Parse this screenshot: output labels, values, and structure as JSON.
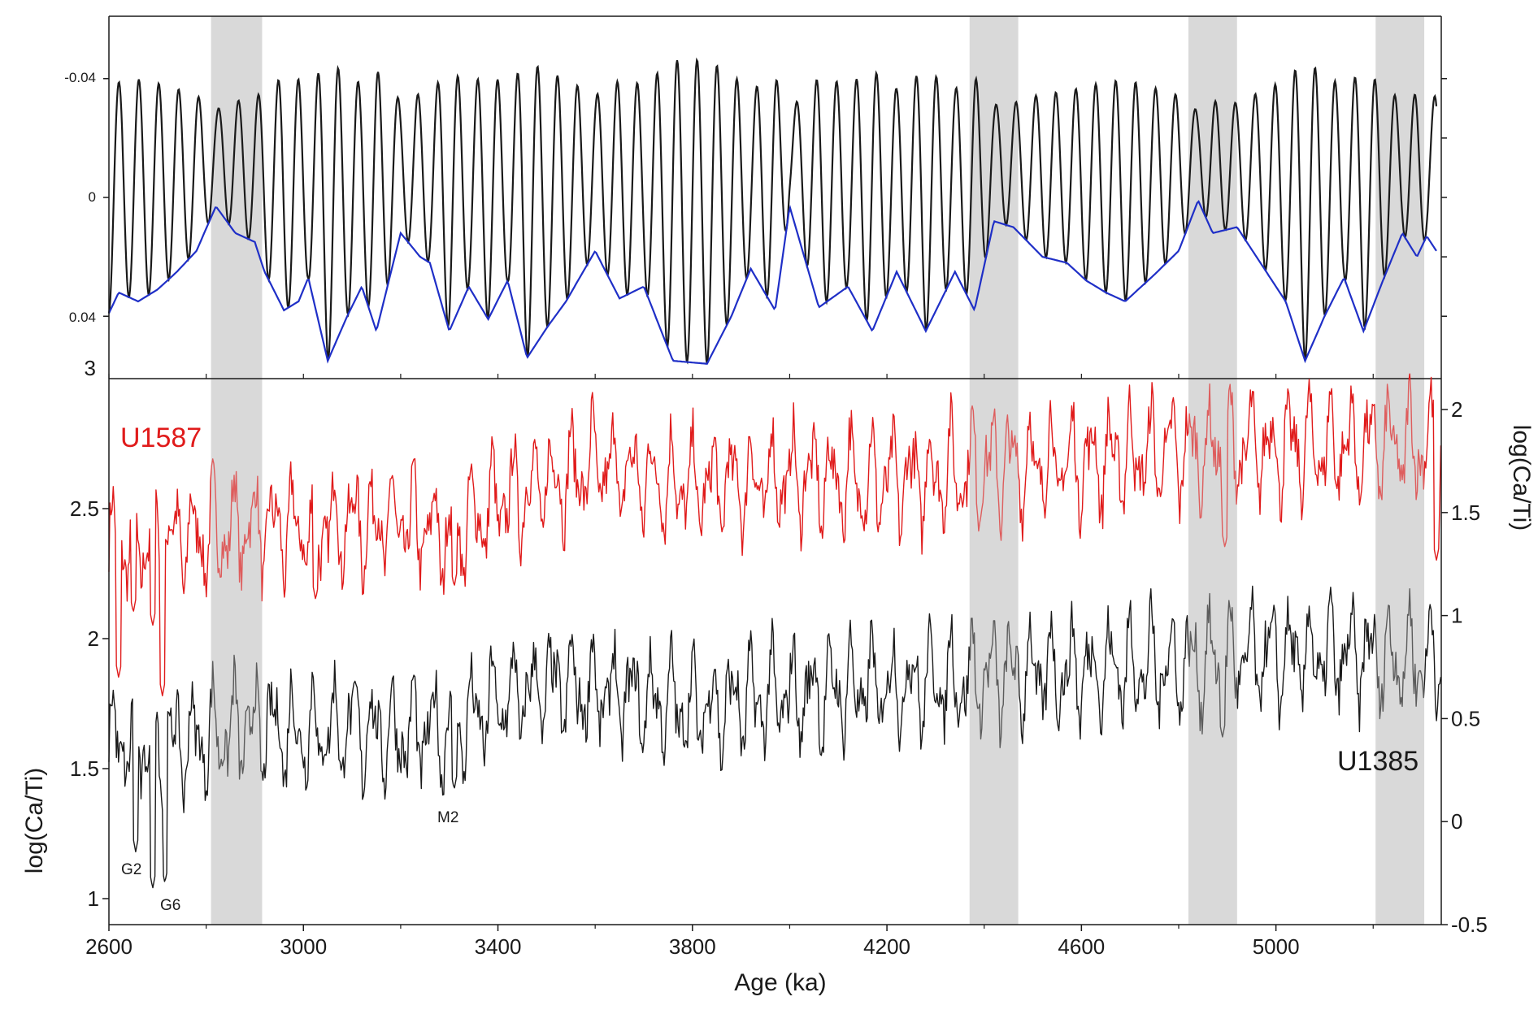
{
  "chart_data": [
    {
      "panel": "top",
      "type": "line",
      "x_domain": [
        2600,
        5340
      ],
      "ylim": [
        0.061,
        -0.061
      ],
      "y_axis_inverted": true,
      "left_ticks": [
        "-0.04",
        "0",
        "0.04"
      ],
      "left_tick_values": [
        -0.04,
        0,
        0.04
      ],
      "bottom_corner_label": "3",
      "grid": false,
      "series": [
        {
          "color": "#1a1a1a",
          "description_values": "high-frequency oscillation (~41 kyr period) amplitude-modulated by ~400 kyr cycle",
          "period_ka": 41,
          "amplitude_range": [
            0.005,
            0.055
          ]
        },
        {
          "color": "#1f2fc7",
          "envelope_points": [
            [
              2600,
              0.039
            ],
            [
              2620,
              0.032
            ],
            [
              2660,
              0.035
            ],
            [
              2700,
              0.031
            ],
            [
              2740,
              0.025
            ],
            [
              2780,
              0.018
            ],
            [
              2820,
              0.003
            ],
            [
              2860,
              0.012
            ],
            [
              2900,
              0.015
            ],
            [
              2920,
              0.025
            ],
            [
              2960,
              0.038
            ],
            [
              2990,
              0.035
            ],
            [
              3010,
              0.027
            ],
            [
              3050,
              0.055
            ],
            [
              3090,
              0.04
            ],
            [
              3120,
              0.03
            ],
            [
              3150,
              0.045
            ],
            [
              3200,
              0.012
            ],
            [
              3240,
              0.02
            ],
            [
              3260,
              0.022
            ],
            [
              3300,
              0.045
            ],
            [
              3340,
              0.03
            ],
            [
              3380,
              0.041
            ],
            [
              3420,
              0.028
            ],
            [
              3460,
              0.054
            ],
            [
              3500,
              0.044
            ],
            [
              3540,
              0.035
            ],
            [
              3600,
              0.018
            ],
            [
              3650,
              0.034
            ],
            [
              3700,
              0.03
            ],
            [
              3760,
              0.055
            ],
            [
              3830,
              0.056
            ],
            [
              3880,
              0.04
            ],
            [
              3920,
              0.024
            ],
            [
              3970,
              0.038
            ],
            [
              4000,
              0.003
            ],
            [
              4060,
              0.037
            ],
            [
              4120,
              0.03
            ],
            [
              4170,
              0.045
            ],
            [
              4220,
              0.025
            ],
            [
              4280,
              0.045
            ],
            [
              4340,
              0.025
            ],
            [
              4380,
              0.038
            ],
            [
              4420,
              0.008
            ],
            [
              4460,
              0.01
            ],
            [
              4520,
              0.02
            ],
            [
              4570,
              0.022
            ],
            [
              4610,
              0.028
            ],
            [
              4650,
              0.032
            ],
            [
              4690,
              0.035
            ],
            [
              4750,
              0.026
            ],
            [
              4800,
              0.018
            ],
            [
              4840,
              0.001
            ],
            [
              4870,
              0.012
            ],
            [
              4920,
              0.01
            ],
            [
              4980,
              0.025
            ],
            [
              5020,
              0.035
            ],
            [
              5060,
              0.055
            ],
            [
              5100,
              0.04
            ],
            [
              5140,
              0.027
            ],
            [
              5180,
              0.045
            ],
            [
              5220,
              0.028
            ],
            [
              5260,
              0.012
            ],
            [
              5290,
              0.02
            ],
            [
              5310,
              0.013
            ],
            [
              5330,
              0.018
            ]
          ]
        }
      ]
    },
    {
      "panel": "bottom",
      "type": "line",
      "xlabel": "Age (ka)",
      "x_ticks": [
        2600,
        3000,
        3400,
        3800,
        4200,
        4600,
        5000
      ],
      "x_domain": [
        2600,
        5340
      ],
      "ylabel_left": "log(Ca/Ti)",
      "ylim_left": [
        0.9,
        3.0
      ],
      "left_ticks": [
        1,
        1.5,
        2,
        2.5
      ],
      "ylabel_right": "log(Ca/Ti)",
      "ylim_right": [
        -0.5,
        2.15
      ],
      "right_ticks": [
        -0.5,
        0,
        0.5,
        1,
        1.5,
        2
      ],
      "grid": false,
      "series": [
        {
          "name": "U1587",
          "color": "#e01b1b",
          "axis": "left",
          "trend_points": [
            [
              2600,
              2.35
            ],
            [
              2800,
              2.4
            ],
            [
              2900,
              2.43
            ],
            [
              3000,
              2.42
            ],
            [
              3100,
              2.45
            ],
            [
              3200,
              2.44
            ],
            [
              3300,
              2.4
            ],
            [
              3400,
              2.52
            ],
            [
              3500,
              2.6
            ],
            [
              3600,
              2.66
            ],
            [
              3800,
              2.58
            ],
            [
              4000,
              2.62
            ],
            [
              4200,
              2.6
            ],
            [
              4400,
              2.66
            ],
            [
              4600,
              2.68
            ],
            [
              4800,
              2.72
            ],
            [
              5000,
              2.73
            ],
            [
              5200,
              2.74
            ],
            [
              5340,
              2.74
            ]
          ],
          "minima": [
            [
              2620,
              1.85
            ],
            [
              2650,
              2.1
            ],
            [
              2690,
              2.05
            ],
            [
              2710,
              1.78
            ],
            [
              3025,
              2.15
            ],
            [
              3310,
              2.2
            ],
            [
              4895,
              2.35
            ],
            [
              5330,
              2.3
            ]
          ]
        },
        {
          "name": "U1385",
          "color": "#1a1a1a",
          "axis": "left",
          "trend_points": [
            [
              2600,
              1.6
            ],
            [
              2700,
              1.58
            ],
            [
              2800,
              1.62
            ],
            [
              2900,
              1.66
            ],
            [
              3000,
              1.64
            ],
            [
              3100,
              1.66
            ],
            [
              3200,
              1.63
            ],
            [
              3300,
              1.65
            ],
            [
              3400,
              1.75
            ],
            [
              3500,
              1.82
            ],
            [
              3600,
              1.8
            ],
            [
              3800,
              1.73
            ],
            [
              4000,
              1.78
            ],
            [
              4200,
              1.82
            ],
            [
              4400,
              1.85
            ],
            [
              4600,
              1.88
            ],
            [
              4800,
              1.9
            ],
            [
              5000,
              1.93
            ],
            [
              5200,
              1.93
            ],
            [
              5340,
              1.92
            ]
          ],
          "minima": [
            [
              2655,
              1.18
            ],
            [
              2690,
              1.04
            ],
            [
              2715,
              1.06
            ],
            [
              3310,
              1.42
            ],
            [
              4890,
              1.62
            ]
          ]
        }
      ],
      "annotations": [
        {
          "text": "U1587",
          "color": "#e01b1b",
          "x": 2645,
          "y": 2.78
        },
        {
          "text": "U1385",
          "color": "#1a1a1a",
          "x": 5250,
          "y": 1.5
        },
        {
          "text": "G2",
          "color": "#1a1a1a",
          "x": 2645,
          "y": 1.1
        },
        {
          "text": "G6",
          "color": "#1a1a1a",
          "x": 2715,
          "y": 0.99
        },
        {
          "text": "M2",
          "color": "#1a1a1a",
          "x": 3305,
          "y": 1.32
        }
      ]
    }
  ],
  "shaded_intervals_ka": [
    [
      2810,
      2915
    ],
    [
      4370,
      4470
    ],
    [
      4820,
      4920
    ],
    [
      5205,
      5305
    ]
  ],
  "colors": {
    "shade": "#d9d9d9",
    "u1587": "#e01b1b",
    "u1385": "#1a1a1a",
    "precession": "#1a1a1a",
    "envelope": "#1f2fc7"
  }
}
